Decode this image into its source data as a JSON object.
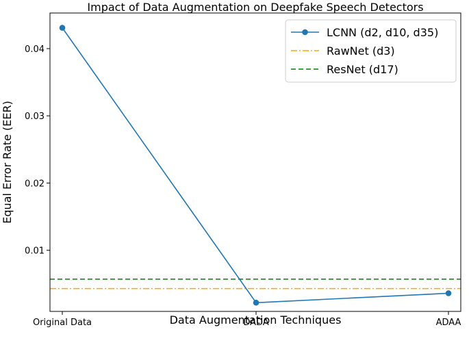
{
  "chart_data": {
    "type": "line",
    "title": "Impact of Data Augmentation on Deepfake Speech Detectors",
    "xlabel": "Data Augmentation Techniques",
    "ylabel": "Equal Error Rate (EER)",
    "categories": [
      "Original Data",
      "DADA",
      "ADAA"
    ],
    "ylim": [
      0.0009,
      0.0453
    ],
    "yticks": [
      0.01,
      0.02,
      0.03,
      0.04
    ],
    "ytick_labels": [
      "0.01",
      "0.02",
      "0.03",
      "0.04"
    ],
    "grid": false,
    "legend_position": "top-right",
    "series": [
      {
        "name": "LCNN (d2, d10, d35)",
        "kind": "line",
        "values": [
          0.0431,
          0.0022,
          0.0036
        ],
        "color": "#1f77b4",
        "marker": "circle",
        "linestyle": "solid"
      }
    ],
    "reference_lines": [
      {
        "name": "RawNet (d3)",
        "y": 0.0043,
        "color": "#ffa500",
        "linestyle": "dashdot"
      },
      {
        "name": "ResNet (d17)",
        "y": 0.0057,
        "color": "#008000",
        "linestyle": "dashed"
      }
    ]
  }
}
